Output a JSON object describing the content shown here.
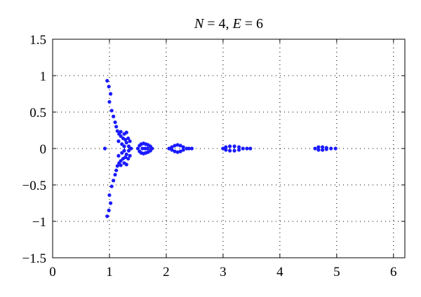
{
  "chart_data": {
    "type": "scatter",
    "title": {
      "var1": "N",
      "rel1": " = 4, ",
      "var2": "E",
      "rel2": " = 6"
    },
    "xlabel": "",
    "ylabel": "",
    "xlim": [
      0,
      6.2
    ],
    "ylim": [
      -1.5,
      1.5
    ],
    "grid": true,
    "legend": "none",
    "xticks": [
      {
        "value": 0,
        "label": "0"
      },
      {
        "value": 1,
        "label": "1"
      },
      {
        "value": 2,
        "label": "2"
      },
      {
        "value": 3,
        "label": "3"
      },
      {
        "value": 4,
        "label": "4"
      },
      {
        "value": 5,
        "label": "5"
      },
      {
        "value": 6,
        "label": "6"
      }
    ],
    "yticks": [
      {
        "value": 1.5,
        "label": "1.5"
      },
      {
        "value": 1,
        "label": "1"
      },
      {
        "value": 0.5,
        "label": "0.5"
      },
      {
        "value": 0,
        "label": "0"
      },
      {
        "value": -0.5,
        "label": "−0.5"
      },
      {
        "value": -1,
        "label": "−1"
      },
      {
        "value": -1.5,
        "label": "−1.5"
      }
    ],
    "marker_color": "#1a1aff",
    "series": [
      {
        "points": [
          [
            0.92,
            0.0
          ],
          [
            0.96,
            0.93
          ],
          [
            0.96,
            -0.93
          ],
          [
            0.99,
            0.85
          ],
          [
            0.99,
            -0.85
          ],
          [
            1.02,
            0.75
          ],
          [
            1.02,
            -0.75
          ],
          [
            1.0,
            0.64
          ],
          [
            1.0,
            -0.64
          ],
          [
            1.04,
            0.52
          ],
          [
            1.04,
            -0.52
          ],
          [
            1.07,
            0.44
          ],
          [
            1.07,
            -0.44
          ],
          [
            1.1,
            0.36
          ],
          [
            1.1,
            -0.36
          ],
          [
            1.12,
            0.3
          ],
          [
            1.12,
            -0.3
          ],
          [
            1.14,
            0.24
          ],
          [
            1.14,
            -0.24
          ],
          [
            1.17,
            0.2
          ],
          [
            1.17,
            -0.2
          ],
          [
            1.2,
            0.17
          ],
          [
            1.2,
            -0.17
          ],
          [
            1.24,
            0.14
          ],
          [
            1.24,
            -0.14
          ],
          [
            1.28,
            0.12
          ],
          [
            1.28,
            -0.12
          ],
          [
            1.3,
            0.08
          ],
          [
            1.3,
            -0.08
          ],
          [
            1.16,
            0.1
          ],
          [
            1.16,
            -0.1
          ],
          [
            1.22,
            0.06
          ],
          [
            1.22,
            -0.06
          ],
          [
            1.26,
            0.03
          ],
          [
            1.26,
            -0.03
          ],
          [
            1.34,
            0.03
          ],
          [
            1.34,
            -0.03
          ],
          [
            1.33,
            0.14
          ],
          [
            1.33,
            -0.14
          ],
          [
            1.26,
            0.2
          ],
          [
            1.26,
            -0.2
          ],
          [
            1.2,
            0.23
          ],
          [
            1.2,
            -0.23
          ],
          [
            1.3,
            0.22
          ],
          [
            1.3,
            -0.22
          ],
          [
            1.36,
            0.1
          ],
          [
            1.36,
            -0.1
          ],
          [
            1.38,
            0.0
          ],
          [
            1.5,
            0.0
          ],
          [
            1.53,
            0.04
          ],
          [
            1.53,
            -0.04
          ],
          [
            1.56,
            0.06
          ],
          [
            1.56,
            -0.06
          ],
          [
            1.6,
            0.07
          ],
          [
            1.6,
            -0.07
          ],
          [
            1.64,
            0.06
          ],
          [
            1.64,
            -0.06
          ],
          [
            1.68,
            0.05
          ],
          [
            1.68,
            -0.05
          ],
          [
            1.72,
            0.03
          ],
          [
            1.72,
            -0.03
          ],
          [
            1.58,
            0.0
          ],
          [
            1.63,
            0.0
          ],
          [
            1.67,
            0.0
          ],
          [
            1.75,
            0.0
          ],
          [
            2.05,
            0.0
          ],
          [
            2.1,
            0.02
          ],
          [
            2.1,
            -0.02
          ],
          [
            2.15,
            0.04
          ],
          [
            2.15,
            -0.04
          ],
          [
            2.2,
            0.05
          ],
          [
            2.2,
            -0.05
          ],
          [
            2.25,
            0.04
          ],
          [
            2.25,
            -0.04
          ],
          [
            2.3,
            0.02
          ],
          [
            2.3,
            -0.02
          ],
          [
            2.36,
            0.0
          ],
          [
            2.4,
            0.0
          ],
          [
            2.45,
            0.0
          ],
          [
            3.0,
            0.0
          ],
          [
            3.05,
            0.02
          ],
          [
            3.05,
            -0.02
          ],
          [
            3.12,
            0.03
          ],
          [
            3.12,
            -0.03
          ],
          [
            3.2,
            0.03
          ],
          [
            3.2,
            -0.03
          ],
          [
            3.28,
            0.02
          ],
          [
            3.28,
            -0.02
          ],
          [
            3.35,
            0.0
          ],
          [
            3.42,
            0.0
          ],
          [
            3.48,
            0.0
          ],
          [
            4.62,
            0.0
          ],
          [
            4.68,
            0.02
          ],
          [
            4.68,
            -0.02
          ],
          [
            4.75,
            0.02
          ],
          [
            4.75,
            -0.02
          ],
          [
            4.82,
            0.01
          ],
          [
            4.82,
            -0.01
          ],
          [
            4.9,
            0.0
          ],
          [
            4.98,
            0.0
          ]
        ]
      }
    ]
  }
}
